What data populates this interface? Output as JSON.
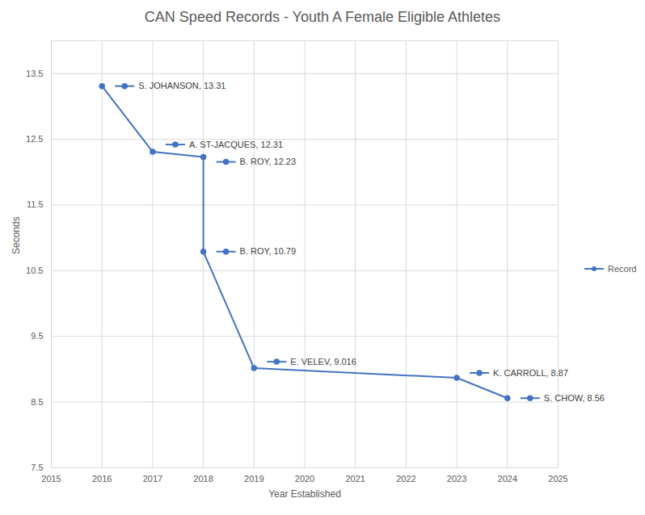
{
  "chart_data": {
    "type": "line",
    "title": "CAN Speed Records - Youth A Female Eligible Athletes",
    "x_label": "Year Established",
    "y_label": "Seconds",
    "x": [
      2016,
      2017,
      2018,
      2018,
      2019,
      2023,
      2024
    ],
    "series": [
      {
        "name": "Record",
        "color": "#4472c4",
        "marker": "circle",
        "values": [
          13.31,
          12.31,
          12.23,
          10.79,
          9.016,
          8.87,
          8.56
        ],
        "value_labels": [
          "S. JOHANSON, 13.31",
          "A. ST-JACQUES, 12.31",
          "B. ROY, 12.23",
          "B. ROY, 10.79",
          "E. VELEV, 9.016",
          "K. CARROLL, 8.87",
          "S. CHOW, 8.56"
        ]
      }
    ],
    "xlim": [
      2015,
      2025
    ],
    "xticks": [
      2015,
      2016,
      2017,
      2018,
      2019,
      2020,
      2021,
      2022,
      2023,
      2024,
      2025
    ],
    "ylim": [
      7.5,
      14
    ],
    "yticks": [
      7.5,
      8.5,
      9.5,
      10.5,
      11.5,
      12.5,
      13.5
    ],
    "grid": true,
    "legend": "right",
    "data_labels": true
  }
}
